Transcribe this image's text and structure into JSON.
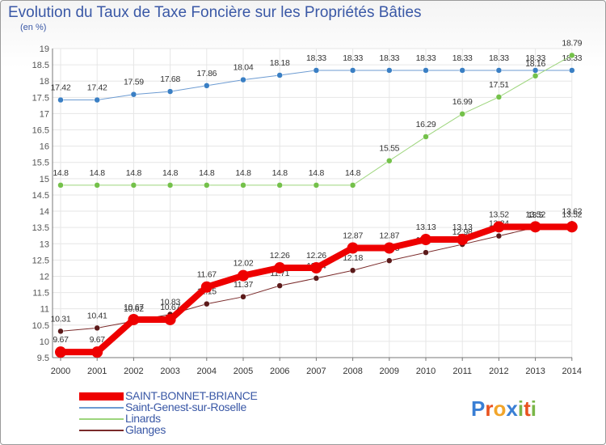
{
  "title": "Evolution du Taux de Taxe Foncière sur les Propriétés Bâties",
  "unit_label": "(en %)",
  "logo": {
    "text": "Proxiti",
    "letters": [
      "P",
      "r",
      "o",
      "x",
      "i",
      "t",
      "i"
    ],
    "colors": [
      "#3a7fd5",
      "#e8521f",
      "#f2a52a",
      "#3a7fd5",
      "#7ab648",
      "#e8521f",
      "#7ab648"
    ]
  },
  "chart_data": {
    "type": "line",
    "x": [
      "2000",
      "2001",
      "2002",
      "2003",
      "2004",
      "2005",
      "2006",
      "2007",
      "2008",
      "2009",
      "2010",
      "2011",
      "2012",
      "2013",
      "2014"
    ],
    "ylim": [
      9.5,
      19
    ],
    "yticks": [
      "9.5",
      "10",
      "10.5",
      "11",
      "11.5",
      "12",
      "12.5",
      "13",
      "13.5",
      "14",
      "14.5",
      "15",
      "15.5",
      "16",
      "16.5",
      "17",
      "17.5",
      "18",
      "18.5",
      "19"
    ],
    "grid": true,
    "series": [
      {
        "name": "Saint-Genest-sur-Roselle",
        "color": "#6c9bd2",
        "marker": "#3a7fc4",
        "width": 1,
        "values": [
          17.42,
          17.42,
          17.59,
          17.68,
          17.86,
          18.04,
          18.18,
          18.33,
          18.33,
          18.33,
          18.33,
          18.33,
          18.33,
          18.33,
          18.33
        ],
        "labels": [
          "17.42",
          "17.42",
          "17.59",
          "17.68",
          "17.86",
          "18.04",
          "18.18",
          "18.33",
          "18.33",
          "18.33",
          "18.33",
          "18.33",
          "18.33",
          "18.33",
          "18.33"
        ]
      },
      {
        "name": "Linards",
        "color": "#9dd57c",
        "marker": "#74c14a",
        "width": 1,
        "values": [
          14.8,
          14.8,
          14.8,
          14.8,
          14.8,
          14.8,
          14.8,
          14.8,
          14.8,
          15.55,
          16.29,
          16.99,
          17.51,
          18.16,
          18.79
        ],
        "labels": [
          "14.8",
          "14.8",
          "14.8",
          "14.8",
          "14.8",
          "14.8",
          "14.8",
          "14.8",
          "14.8",
          "15.55",
          "16.29",
          "16.99",
          "17.51",
          "18.16",
          "18.79"
        ]
      },
      {
        "name": "Glanges",
        "color": "#7a2a2a",
        "marker": "#5c1a1a",
        "width": 1,
        "values": [
          10.31,
          10.41,
          10.62,
          10.83,
          11.15,
          11.37,
          11.71,
          11.94,
          12.18,
          12.48,
          12.73,
          12.98,
          13.24,
          13.5,
          13.62
        ],
        "labels": [
          "10.31",
          "10.41",
          "10.62",
          "10.83",
          "11.15",
          "11.37",
          "11.71",
          "11.94",
          "12.18",
          "12.48",
          "12.73",
          "12.98",
          "13.24",
          "13.5",
          "13.62"
        ]
      },
      {
        "name": "SAINT-BONNET-BRIANCE",
        "color": "#ee0000",
        "marker": "#ee0000",
        "width": 8,
        "values": [
          9.67,
          9.67,
          10.67,
          10.67,
          11.67,
          12.02,
          12.26,
          12.26,
          12.87,
          12.87,
          13.13,
          13.13,
          13.52,
          13.52,
          13.52
        ],
        "labels": [
          "9.67",
          "9.67",
          "10.67",
          "10.67",
          "11.67",
          "12.02",
          "12.26",
          "12.26",
          "12.87",
          "12.87",
          "13.13",
          "13.13",
          "13.52",
          "13.52",
          "13.52"
        ]
      }
    ],
    "legend": [
      {
        "name": "SAINT-BONNET-BRIANCE",
        "color": "#ee0000",
        "width": 10
      },
      {
        "name": "Saint-Genest-sur-Roselle",
        "color": "#6c9bd2",
        "width": 2
      },
      {
        "name": "Linards",
        "color": "#9dd57c",
        "width": 2
      },
      {
        "name": "Glanges",
        "color": "#7a2a2a",
        "width": 2
      }
    ]
  }
}
